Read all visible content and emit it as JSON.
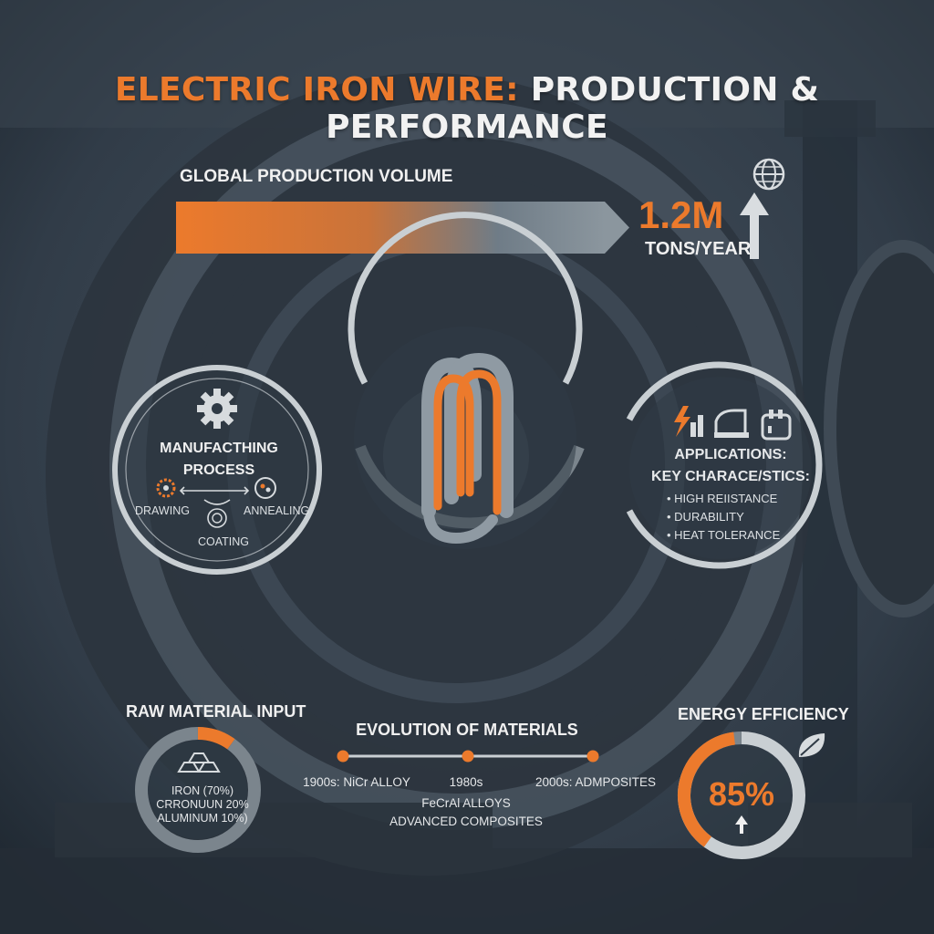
{
  "header": {
    "title_accent": "ELECTRIC IRON WIRE:",
    "title_main": "PRODUCTION & PERFORMANCE"
  },
  "production": {
    "label": "GLOBAL PRODUCTION VOLUME",
    "value": "1.2M",
    "unit": "TONS/YEAR",
    "icons": [
      "globe-icon",
      "arrow-up-icon"
    ]
  },
  "manufacturing": {
    "title_line1": "MANUFACTHING",
    "title_line2": "PROCESS",
    "steps": [
      "DRAWING",
      "ANNEALING",
      "COATING"
    ],
    "icons": [
      "gear-icon",
      "drawing-gear-icon",
      "annealing-icon",
      "coating-icon"
    ]
  },
  "center": {
    "icon": "coiled-wire-icon"
  },
  "applications": {
    "title": "APPLICATIONS:",
    "key_title": "KEY CHARACE/STICS:",
    "characteristics": [
      "HIGH REIISTANCE",
      "DURABILITY",
      "HEAT TOLERANCE"
    ],
    "icons": [
      "lightning-chart-icon",
      "iron-icon",
      "toaster-icon"
    ]
  },
  "raw_material": {
    "title": "RAW MATERIAL INPUT",
    "legend": [
      "IRON (70%)",
      "CRRONUUN 20%",
      "ALUMINUM 10%)"
    ],
    "shares": [
      70,
      20,
      10
    ],
    "icon": "ingots-icon"
  },
  "evolution": {
    "title": "EVOLUTION OF MATERIALS",
    "milestones": [
      {
        "label": "1900s: NiCr ALLOY"
      },
      {
        "label": "1980s",
        "details": [
          "FeCrAl ALLOYS",
          "ADVANCED COMPOSITES"
        ]
      },
      {
        "label": "2000s: ADMPOSITES"
      }
    ]
  },
  "efficiency": {
    "title": "ENERGY EFFICIENCY",
    "value": "85%",
    "fraction": 0.85,
    "icons": [
      "leaf-icon",
      "arrow-up-icon"
    ]
  },
  "colors": {
    "accent": "#ec7a2c",
    "text": "#f0f0f0",
    "ring": "#c9cfd3",
    "ring_dark": "#7b858d",
    "background": "#2f3a46"
  }
}
